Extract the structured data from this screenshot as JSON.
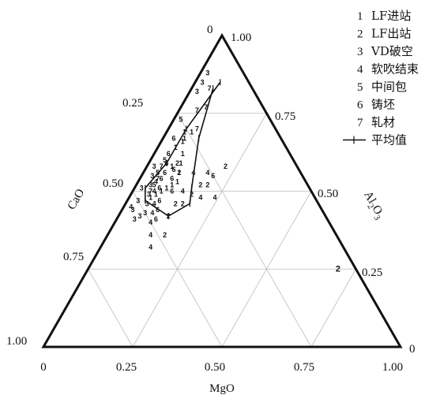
{
  "chart_data": {
    "type": "scatter",
    "subtype": "ternary",
    "axes": {
      "left": {
        "label": "CaO",
        "ticks": [
          "0.25",
          "0.50",
          "0.75",
          "1.00"
        ]
      },
      "right": {
        "label": "Al2O3",
        "ticks": [
          "1.00",
          "0.75",
          "0.50",
          "0.25",
          "0"
        ]
      },
      "bottom": {
        "label": "MgO",
        "ticks": [
          "0",
          "0.25",
          "0.50",
          "0.75",
          "1.00"
        ]
      },
      "top_vertex_label": "0"
    },
    "grid": true,
    "legend_position": "top-right",
    "legend": [
      {
        "num": "1",
        "text": "LF进站"
      },
      {
        "num": "2",
        "text": "LF出站"
      },
      {
        "num": "3",
        "text": "VD破空"
      },
      {
        "num": "4",
        "text": "软吹结束"
      },
      {
        "num": "5",
        "text": "中间包"
      },
      {
        "num": "6",
        "text": "铸坯"
      },
      {
        "num": "7",
        "text": "轧材"
      },
      {
        "num": "",
        "text": "平均值"
      }
    ],
    "series": [
      {
        "label": "1",
        "points": [
          {
            "c": 0.28,
            "m": 0.06
          },
          {
            "c": 0.3,
            "m": 0.08
          },
          {
            "c": 0.32,
            "m": 0.09
          },
          {
            "c": 0.34,
            "m": 0.1
          },
          {
            "c": 0.36,
            "m": 0.11
          },
          {
            "c": 0.38,
            "m": 0.1
          },
          {
            "c": 0.4,
            "m": 0.09
          },
          {
            "c": 0.42,
            "m": 0.08
          },
          {
            "c": 0.44,
            "m": 0.07
          },
          {
            "c": 0.46,
            "m": 0.06
          },
          {
            "c": 0.31,
            "m": 0.05
          },
          {
            "c": 0.35,
            "m": 0.07
          },
          {
            "c": 0.24,
            "m": 0.07
          },
          {
            "c": 0.26,
            "m": 0.05
          },
          {
            "c": 0.27,
            "m": 0.06
          }
        ]
      },
      {
        "label": "2",
        "points": [
          {
            "c": 0.3,
            "m": 0.18
          },
          {
            "c": 0.34,
            "m": 0.17
          },
          {
            "c": 0.38,
            "m": 0.16
          },
          {
            "c": 0.4,
            "m": 0.14
          },
          {
            "c": 0.2,
            "m": 0.22
          },
          {
            "c": 0.28,
            "m": 0.2
          },
          {
            "c": 0.44,
            "m": 0.14
          },
          {
            "c": 0.48,
            "m": 0.16
          },
          {
            "c": 0.05,
            "m": 0.7
          },
          {
            "c": 0.34,
            "m": 0.1
          },
          {
            "c": 0.33,
            "m": 0.08
          }
        ]
      },
      {
        "label": "3",
        "points": [
          {
            "c": 0.4,
            "m": 0.02
          },
          {
            "c": 0.42,
            "m": 0.03
          },
          {
            "c": 0.44,
            "m": 0.04
          },
          {
            "c": 0.46,
            "m": 0.05
          },
          {
            "c": 0.48,
            "m": 0.06
          },
          {
            "c": 0.5,
            "m": 0.07
          },
          {
            "c": 0.52,
            "m": 0.06
          },
          {
            "c": 0.54,
            "m": 0.05
          },
          {
            "c": 0.53,
            "m": 0.03
          },
          {
            "c": 0.5,
            "m": 0.03
          },
          {
            "c": 0.47,
            "m": 0.02
          },
          {
            "c": 0.1,
            "m": 0.02
          },
          {
            "c": 0.13,
            "m": 0.02
          },
          {
            "c": 0.16,
            "m": 0.02
          }
        ]
      },
      {
        "label": "4",
        "points": [
          {
            "c": 0.42,
            "m": 0.05
          },
          {
            "c": 0.44,
            "m": 0.06
          },
          {
            "c": 0.46,
            "m": 0.08
          },
          {
            "c": 0.48,
            "m": 0.09
          },
          {
            "c": 0.5,
            "m": 0.1
          },
          {
            "c": 0.52,
            "m": 0.12
          },
          {
            "c": 0.54,
            "m": 0.14
          },
          {
            "c": 0.28,
            "m": 0.24
          },
          {
            "c": 0.32,
            "m": 0.2
          },
          {
            "c": 0.3,
            "m": 0.14
          },
          {
            "c": 0.26,
            "m": 0.18
          },
          {
            "c": 0.53,
            "m": 0.02
          },
          {
            "c": 0.36,
            "m": 0.14
          }
        ]
      },
      {
        "label": "5",
        "points": [
          {
            "c": 0.25,
            "m": 0.02
          },
          {
            "c": 0.36,
            "m": 0.04
          },
          {
            "c": 0.4,
            "m": 0.04
          },
          {
            "c": 0.43,
            "m": 0.05
          }
        ]
      },
      {
        "label": "6",
        "points": [
          {
            "c": 0.3,
            "m": 0.03
          },
          {
            "c": 0.34,
            "m": 0.04
          },
          {
            "c": 0.36,
            "m": 0.05
          },
          {
            "c": 0.38,
            "m": 0.06
          },
          {
            "c": 0.4,
            "m": 0.06
          },
          {
            "c": 0.42,
            "m": 0.07
          },
          {
            "c": 0.44,
            "m": 0.09
          },
          {
            "c": 0.46,
            "m": 0.1
          },
          {
            "c": 0.48,
            "m": 0.11
          },
          {
            "c": 0.35,
            "m": 0.08
          },
          {
            "c": 0.37,
            "m": 0.09
          },
          {
            "c": 0.39,
            "m": 0.11
          },
          {
            "c": 0.25,
            "m": 0.2
          }
        ]
      },
      {
        "label": "7",
        "points": [
          {
            "c": 0.12,
            "m": 0.05
          },
          {
            "c": 0.16,
            "m": 0.07
          },
          {
            "c": 0.19,
            "m": 0.05
          },
          {
            "c": 0.22,
            "m": 0.08
          },
          {
            "c": 0.45,
            "m": 0.05
          },
          {
            "c": 0.41,
            "m": 0.05
          },
          {
            "c": 0.38,
            "m": 0.04
          }
        ]
      }
    ],
    "average_path": [
      {
        "c": 0.11,
        "m": 0.06
      },
      {
        "c": 0.23,
        "m": 0.1
      },
      {
        "c": 0.33,
        "m": 0.16
      },
      {
        "c": 0.36,
        "m": 0.18
      },
      {
        "c": 0.44,
        "m": 0.14
      },
      {
        "c": 0.48,
        "m": 0.05
      },
      {
        "c": 0.46,
        "m": 0.03
      },
      {
        "c": 0.36,
        "m": 0.05
      },
      {
        "c": 0.25,
        "m": 0.05
      },
      {
        "c": 0.08,
        "m": 0.07
      }
    ]
  }
}
